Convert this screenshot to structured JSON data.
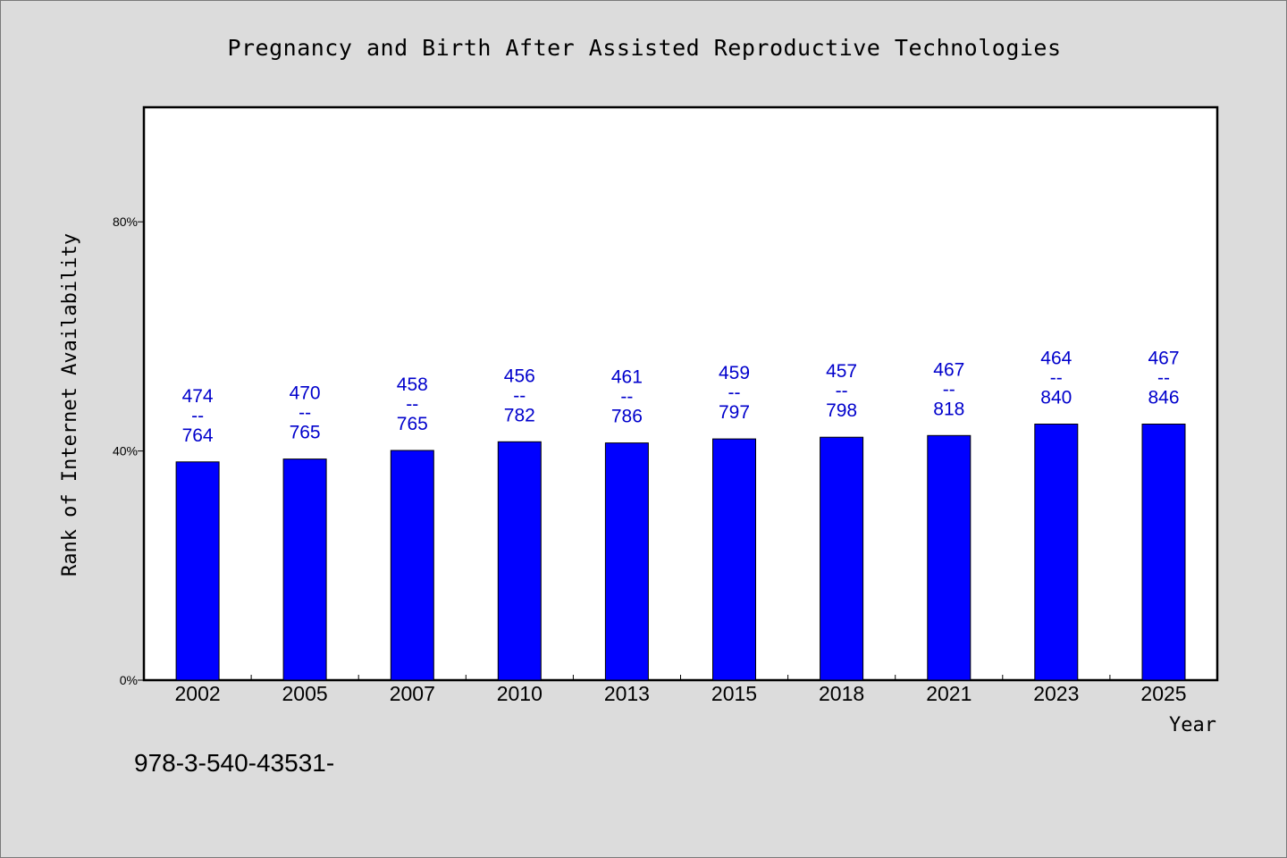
{
  "chart_data": {
    "type": "bar",
    "title": "Pregnancy and Birth After Assisted Reproductive Technologies",
    "xlabel": "Year",
    "ylabel": "Rank of Internet Availability",
    "categories": [
      "2002",
      "2005",
      "2007",
      "2010",
      "2013",
      "2015",
      "2018",
      "2021",
      "2023",
      "2025"
    ],
    "series": [
      {
        "values": [
          38.1,
          38.6,
          40.1,
          41.6,
          41.4,
          42.1,
          42.4,
          42.7,
          44.7,
          44.7
        ],
        "labels": [
          [
            "474",
            "--",
            "764"
          ],
          [
            "470",
            "--",
            "765"
          ],
          [
            "458",
            "--",
            "765"
          ],
          [
            "456",
            "--",
            "782"
          ],
          [
            "461",
            "--",
            "786"
          ],
          [
            "459",
            "--",
            "797"
          ],
          [
            "457",
            "--",
            "798"
          ],
          [
            "467",
            "--",
            "818"
          ],
          [
            "464",
            "--",
            "840"
          ],
          [
            "467",
            "--",
            "846"
          ]
        ]
      }
    ],
    "ylim": [
      0,
      100
    ],
    "yticks": [
      {
        "value": 0,
        "label": "0%"
      },
      {
        "value": 40,
        "label": "40%"
      },
      {
        "value": 80,
        "label": "80%"
      }
    ],
    "grid": false,
    "legend": "none",
    "annotation": "978-3-540-43531-",
    "colors": {
      "bar": "#0000ff",
      "bar_outline": "#000000",
      "label": "#0000cc",
      "plot_bg": "#ffffff",
      "page_bg": "#dcdcdc"
    }
  }
}
